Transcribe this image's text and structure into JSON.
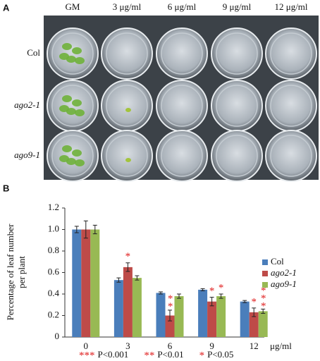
{
  "panel_a": {
    "label": "A",
    "columns": [
      "GM",
      "3  μg/ml",
      "6 μg/ml",
      "9 μg/ml",
      "12 μg/ml"
    ],
    "rows": [
      "Col",
      "ago2-1",
      "ago9-1"
    ]
  },
  "chart_data": {
    "type": "bar",
    "panel_label": "B",
    "y_label": [
      "Percentage of leaf number",
      "per plant"
    ],
    "x_unit": "μg/ml",
    "categories": [
      "0",
      "3",
      "6",
      "9",
      "12"
    ],
    "series": [
      {
        "name": "Col",
        "color": "#4a7ebb",
        "values": [
          1.0,
          0.53,
          0.41,
          0.44,
          0.33
        ],
        "errors": [
          0.03,
          0.02,
          0.01,
          0.01,
          0.01
        ],
        "significance": [
          null,
          null,
          null,
          null,
          null
        ]
      },
      {
        "name": "ago2-1",
        "color": "#be4b48",
        "values": [
          1.0,
          0.65,
          0.2,
          0.33,
          0.23
        ],
        "errors": [
          0.08,
          0.04,
          0.05,
          0.04,
          0.04
        ],
        "significance": [
          null,
          "*",
          "**",
          "*",
          "*"
        ]
      },
      {
        "name": "ago9-1",
        "color": "#98b954",
        "values": [
          1.0,
          0.55,
          0.38,
          0.38,
          0.24
        ],
        "errors": [
          0.04,
          0.02,
          0.02,
          0.02,
          0.02
        ],
        "significance": [
          null,
          null,
          null,
          "*",
          "***"
        ]
      }
    ],
    "ylim": [
      0,
      1.2
    ],
    "yticks": [
      0,
      0.2,
      0.4,
      0.6,
      0.8,
      {
        "value": 1,
        "label": "1.0"
      },
      1.2
    ],
    "legend": "right",
    "notes": [
      {
        "stars": "***",
        "text": "P<0.001"
      },
      {
        "stars": "**",
        "text": "P<0.01"
      },
      {
        "stars": "*",
        "text": "P<0.05"
      }
    ]
  }
}
